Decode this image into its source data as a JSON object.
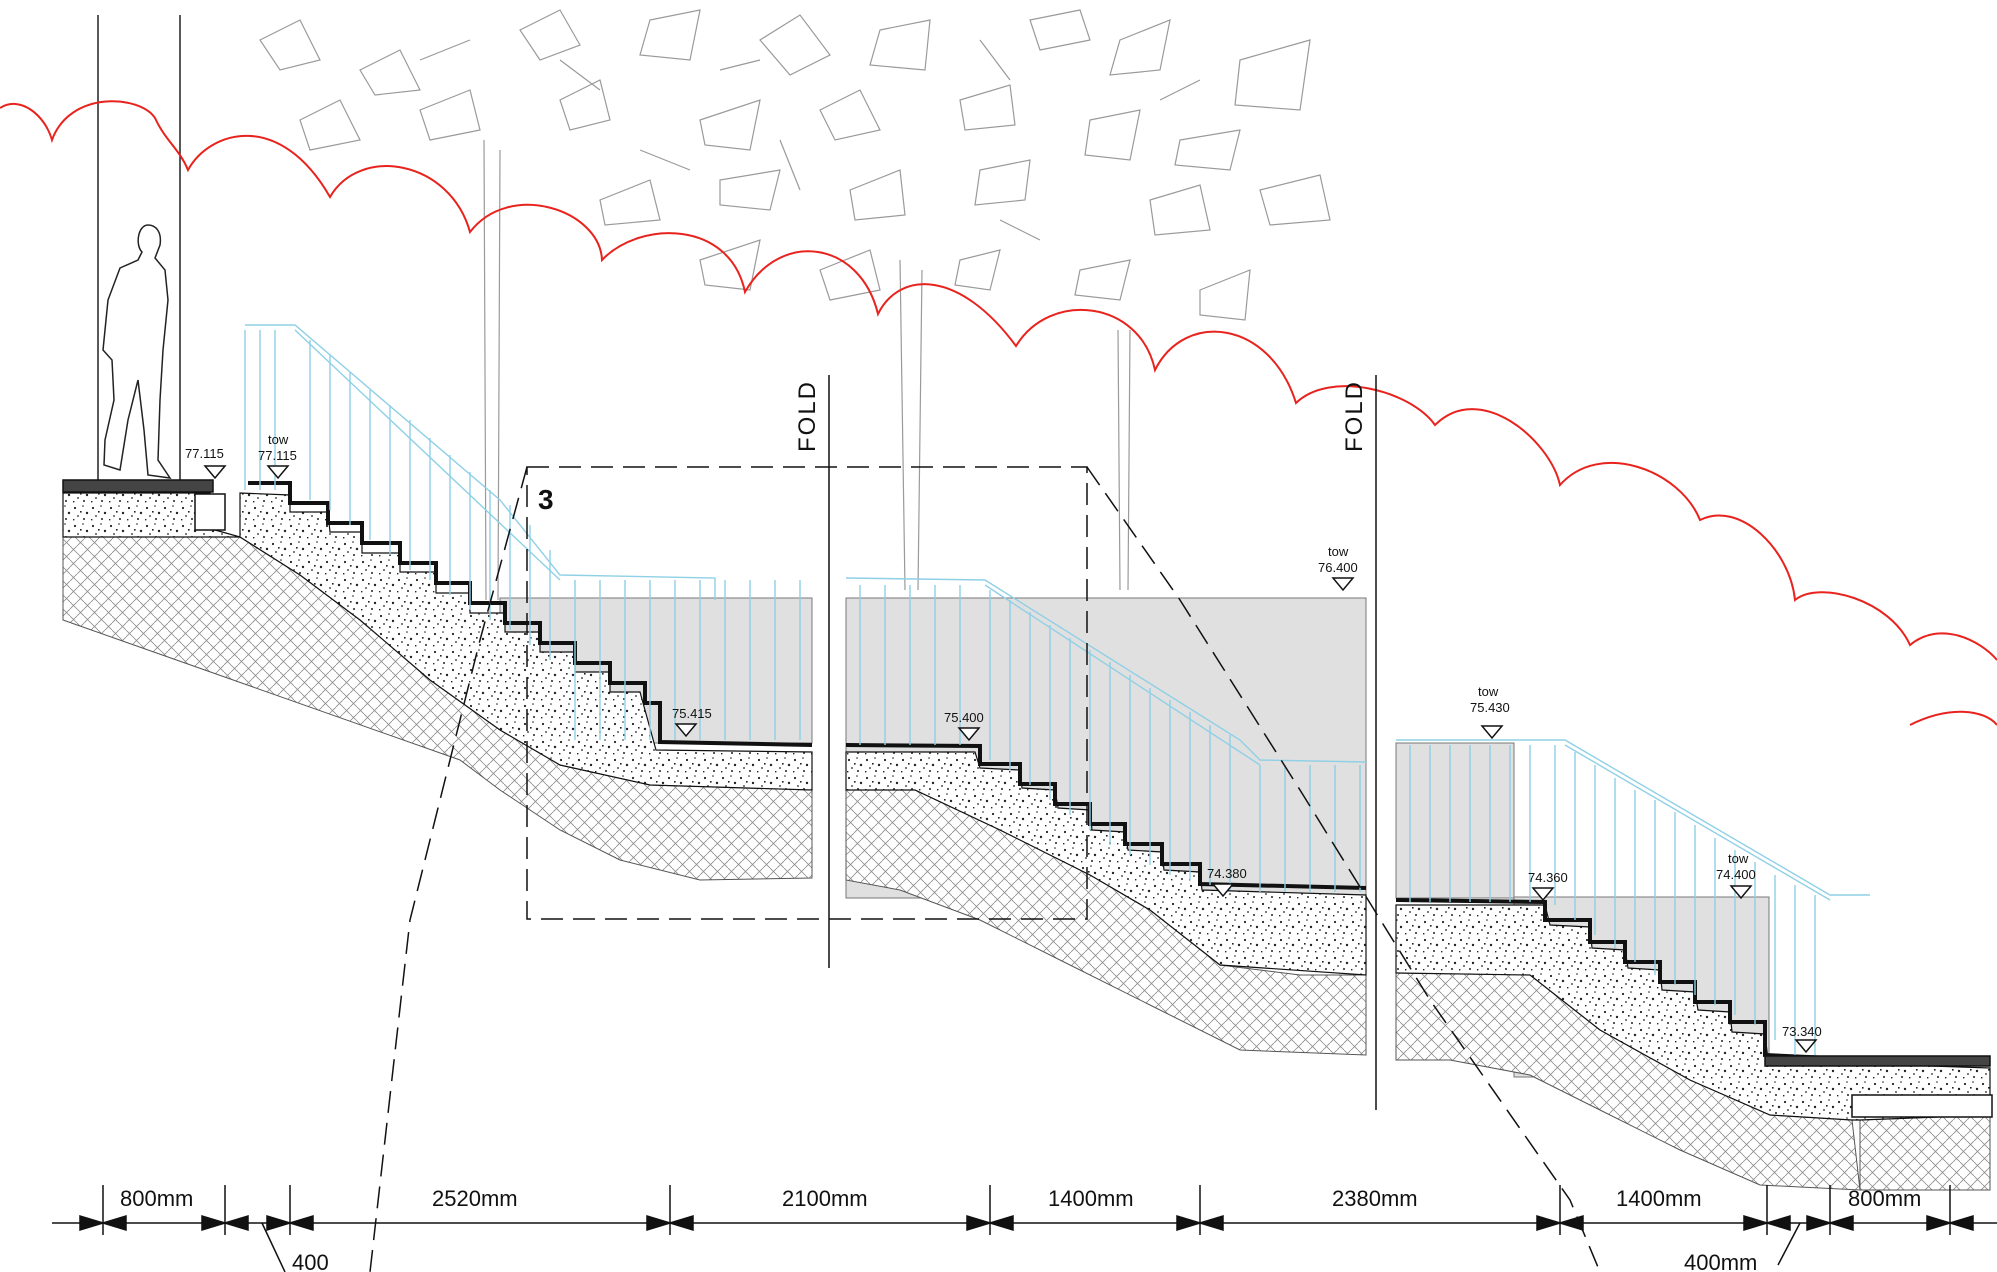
{
  "levels": {
    "top_left": "77.115",
    "top_stair": "77.115",
    "landing_1": "75.415",
    "landing_2": "75.400",
    "tow_top": "76.400",
    "landing_3": "74.380",
    "tow_mid": "75.430",
    "landing_4": "74.360",
    "tow_low": "74.400",
    "bottom": "73.340"
  },
  "tow_label": "tow",
  "fold_label": "FOLD",
  "detail_ref": "3",
  "dimensions": [
    {
      "label": "800mm"
    },
    {
      "label": "2520mm"
    },
    {
      "label": "2100mm"
    },
    {
      "label": "1400mm"
    },
    {
      "label": "2380mm"
    },
    {
      "label": "1400mm"
    },
    {
      "label": "800mm"
    }
  ],
  "small_dims": {
    "left": "400",
    "right": "400mm"
  },
  "colors": {
    "canopy": "#e8231e",
    "railing": "#8fd0e6",
    "wall": "#e0e0e0",
    "line": "#111111"
  }
}
